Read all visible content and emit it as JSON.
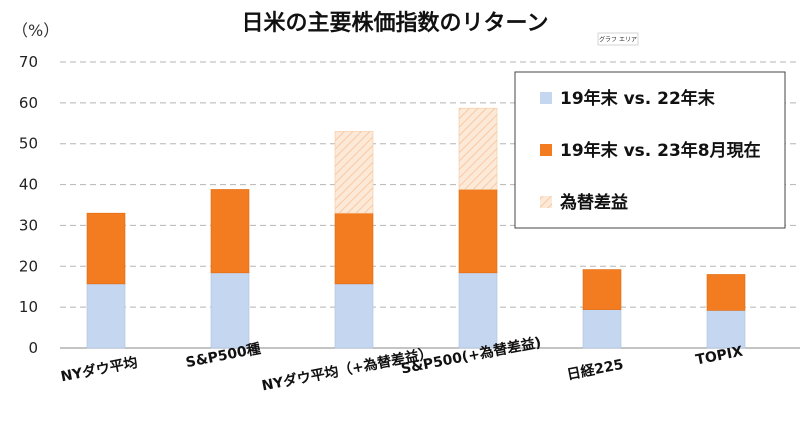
{
  "chart_data": {
    "type": "bar",
    "stacked": true,
    "title": "日米の主要株価指数のリターン",
    "unit_label": "（%）",
    "categories": [
      "NYダウ平均",
      "S&P500種",
      "NYダウ平均（+為替差益）",
      "S&P500(+為替差益)",
      "日経225",
      "TOPIX"
    ],
    "series": [
      {
        "name": "19年末 vs. 22年末",
        "color": "#c5d6f0",
        "values": [
          15.7,
          18.4,
          15.7,
          18.4,
          9.4,
          9.2
        ]
      },
      {
        "name": "19年末 vs. 23年8月現在",
        "color": "#f47c20",
        "values": [
          17.3,
          20.4,
          17.3,
          20.4,
          9.8,
          8.8
        ]
      },
      {
        "name": "為替差益",
        "color": "#fde6d3",
        "values": [
          0,
          0,
          20.0,
          19.9,
          0,
          0
        ]
      }
    ],
    "ylim": [
      0,
      70
    ],
    "yticks": [
      0,
      10,
      20,
      30,
      40,
      50,
      60,
      70
    ],
    "grid": true,
    "legend_position": "top-right",
    "tooltip": "グラフ エリア"
  }
}
